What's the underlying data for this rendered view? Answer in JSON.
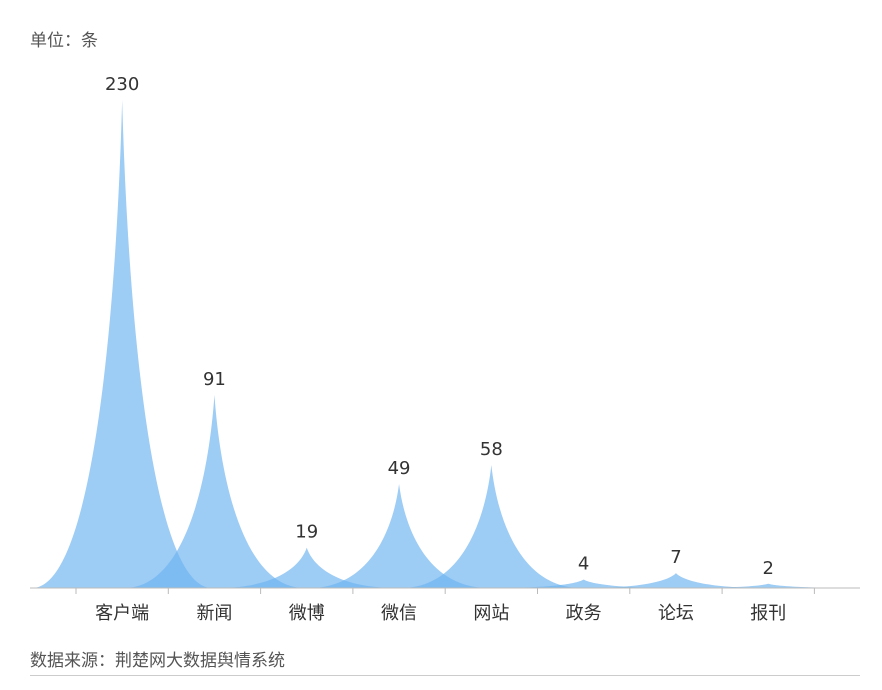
{
  "unit_label": "单位：条",
  "source_label": "数据来源：荆楚网大数据舆情系统",
  "colors": {
    "peak_fill": "#6fb4f0",
    "axis": "#bbbbbb",
    "text": "#333333"
  },
  "chart_data": {
    "type": "bar",
    "categories": [
      "客户端",
      "新闻",
      "微博",
      "微信",
      "网站",
      "政务",
      "论坛",
      "报刊"
    ],
    "values": [
      230,
      91,
      19,
      49,
      58,
      4,
      7,
      2
    ],
    "ylim": [
      0,
      230
    ],
    "grid": false,
    "legend": "none",
    "data_labels": true
  }
}
